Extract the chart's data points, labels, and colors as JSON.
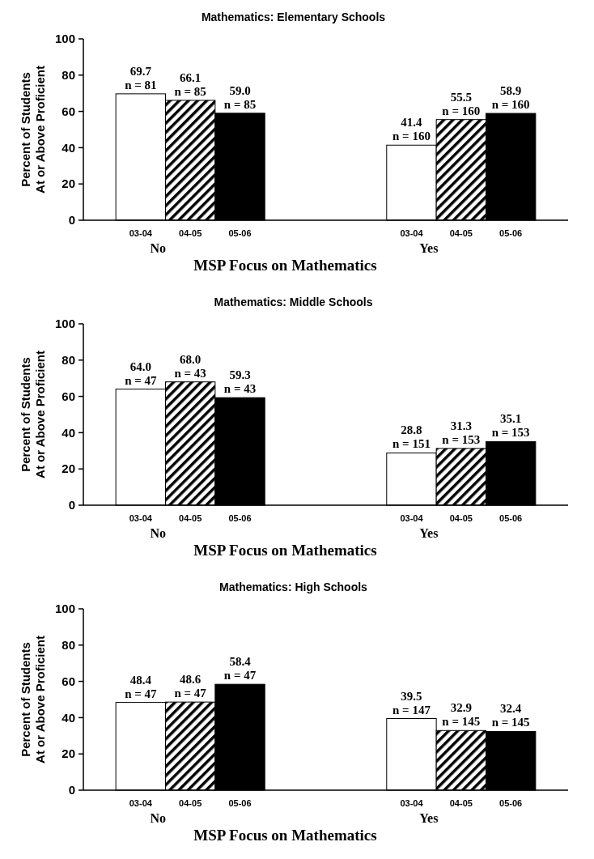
{
  "chart_data": [
    {
      "type": "bar",
      "title": "Mathematics:  Elementary Schools",
      "xlabel": "MSP Focus on Mathematics",
      "ylabel": "Percent of Students\nAt or Above Proficient",
      "categories": [
        "No",
        "Yes"
      ],
      "ylim": [
        0,
        100
      ],
      "yticks": [
        0,
        20,
        40,
        60,
        80,
        100
      ],
      "series": [
        {
          "name": "03-04",
          "color": "#ffffff",
          "values": [
            69.7,
            41.4
          ],
          "value_labels": [
            "69.7\nn = 81",
            "41.4\nn = 160"
          ]
        },
        {
          "name": "04-05",
          "color": "#000000",
          "values": [
            66.1,
            55.5
          ],
          "value_labels": [
            "66.1\nn = 85",
            "55.5\nn = 160"
          ]
        },
        {
          "name": "05-06",
          "color": "#000000",
          "values": [
            59.0,
            58.9
          ],
          "value_labels": [
            "59.0\nn = 85",
            "58.9\nn = 160"
          ]
        }
      ]
    },
    {
      "type": "bar",
      "title": "Mathematics:  Middle Schools",
      "xlabel": "MSP Focus on Mathematics",
      "ylabel": "Percent of Students\nAt or Above Proficient",
      "categories": [
        "No",
        "Yes"
      ],
      "ylim": [
        0,
        100
      ],
      "yticks": [
        0,
        20,
        40,
        60,
        80,
        100
      ],
      "series": [
        {
          "name": "03-04",
          "color": "#ffffff",
          "values": [
            64.0,
            28.8
          ],
          "value_labels": [
            "64.0\nn = 47",
            "28.8\nn = 151"
          ]
        },
        {
          "name": "04-05",
          "color": "#000000",
          "values": [
            68.0,
            31.3
          ],
          "value_labels": [
            "68.0\nn = 43",
            "31.3\nn = 153"
          ]
        },
        {
          "name": "05-06",
          "color": "#000000",
          "values": [
            59.3,
            35.1
          ],
          "value_labels": [
            "59.3\nn = 43",
            "35.1\nn = 153"
          ]
        }
      ]
    },
    {
      "type": "bar",
      "title": "Mathematics:  High Schools",
      "xlabel": "MSP Focus on Mathematics",
      "ylabel": "Percent of Students\nAt or Above Proficient",
      "categories": [
        "No",
        "Yes"
      ],
      "ylim": [
        0,
        100
      ],
      "yticks": [
        0,
        20,
        40,
        60,
        80,
        100
      ],
      "series": [
        {
          "name": "03-04",
          "color": "#ffffff",
          "values": [
            48.4,
            39.5
          ],
          "value_labels": [
            "48.4\nn = 47",
            "39.5\nn = 147"
          ]
        },
        {
          "name": "04-05",
          "color": "#000000",
          "values": [
            48.6,
            32.9
          ],
          "value_labels": [
            "48.6\nn = 47",
            "32.9\nn = 145"
          ]
        },
        {
          "name": "05-06",
          "color": "#000000",
          "values": [
            58.4,
            32.4
          ],
          "value_labels": [
            "58.4\nn = 47",
            "32.4\nn = 145"
          ]
        }
      ]
    }
  ]
}
